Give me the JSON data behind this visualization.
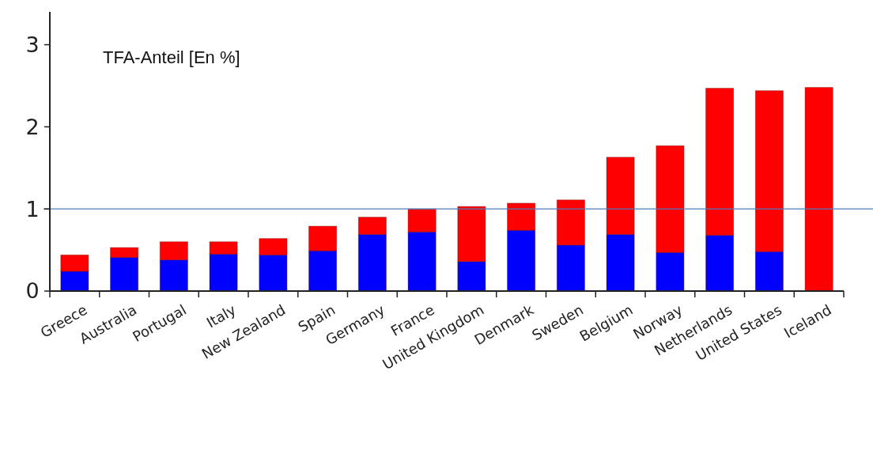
{
  "chart_data": {
    "type": "bar",
    "title": "TFA-Anteil [En %]",
    "stacked": true,
    "categories": [
      "Greece",
      "Australia",
      "Portugal",
      "Italy",
      "New Zealand",
      "Spain",
      "Germany",
      "France",
      "United Kingdom",
      "Denmark",
      "Sweden",
      "Belgium",
      "Norway",
      "Netherlands",
      "United States",
      "Iceland"
    ],
    "series": [
      {
        "color": "#0000ff",
        "values": [
          0.24,
          0.41,
          0.38,
          0.45,
          0.44,
          0.49,
          0.69,
          0.72,
          0.36,
          0.74,
          0.56,
          0.69,
          0.47,
          0.68,
          0.48,
          0
        ]
      },
      {
        "color": "#ff0000",
        "values": [
          0.2,
          0.12,
          0.22,
          0.15,
          0.2,
          0.3,
          0.21,
          0.28,
          0.67,
          0.33,
          0.55,
          0.94,
          1.3,
          1.79,
          1.96,
          2.48
        ]
      }
    ],
    "ylim": [
      0,
      3.4
    ],
    "yticks": [
      0,
      1,
      2,
      3
    ],
    "grid": false,
    "ref_lines": [
      {
        "axis": "y",
        "value": 1,
        "color": "#4a7ebb"
      }
    ]
  }
}
